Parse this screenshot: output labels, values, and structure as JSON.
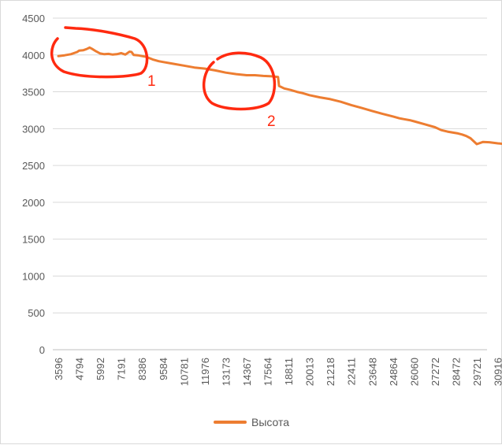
{
  "chart_data": {
    "type": "line",
    "title": "",
    "xlabel": "",
    "ylabel": "",
    "ylim": [
      0,
      4500
    ],
    "y_ticks": [
      0,
      500,
      1000,
      1500,
      2000,
      2500,
      3000,
      3500,
      4000,
      4500
    ],
    "y_tick_labels": [
      "0",
      "500",
      "1000",
      "1500",
      "2000",
      "2500",
      "3000",
      "3500",
      "4000",
      "4500"
    ],
    "x_tick_labels": [
      "3596",
      "4794",
      "5992",
      "7191",
      "8386",
      "9584",
      "10781",
      "11976",
      "13173",
      "14367",
      "17564",
      "18811",
      "20013",
      "21218",
      "22411",
      "23648",
      "24864",
      "26060",
      "27272",
      "28472",
      "29721",
      "30916"
    ],
    "grid": "horizontal",
    "legend_position": "bottom",
    "series": [
      {
        "name": "Высота",
        "color": "#ed7d31",
        "x_index": [
          0,
          0.3,
          0.6,
          0.9,
          1.0,
          1.2,
          1.35,
          1.5,
          1.6,
          1.8,
          2.0,
          2.2,
          2.4,
          2.6,
          2.8,
          3.0,
          3.2,
          3.4,
          3.5,
          3.6,
          3.8,
          4.0,
          4.2,
          4.5,
          4.8,
          5.0,
          5.5,
          6.0,
          6.5,
          7.0,
          7.5,
          8.0,
          8.5,
          9.0,
          9.4,
          9.8,
          10.2,
          10.5,
          10.55,
          10.8,
          11.1,
          11.4,
          11.7,
          12.0,
          12.5,
          13.0,
          13.5,
          14.0,
          14.5,
          15.0,
          15.5,
          16.0,
          16.3,
          16.5,
          16.8,
          17.0,
          17.5,
          18.0,
          18.3,
          18.6,
          18.9,
          19.1,
          19.3,
          19.5,
          19.7,
          20.0,
          20.3,
          20.6,
          21.0,
          21.4
        ],
        "values": [
          3985,
          3995,
          4010,
          4040,
          4060,
          4065,
          4080,
          4100,
          4085,
          4050,
          4020,
          4010,
          4015,
          4005,
          4010,
          4025,
          4005,
          4045,
          4040,
          4000,
          3995,
          3985,
          3975,
          3940,
          3915,
          3905,
          3880,
          3855,
          3830,
          3815,
          3790,
          3760,
          3740,
          3725,
          3725,
          3715,
          3710,
          3700,
          3580,
          3545,
          3525,
          3500,
          3480,
          3455,
          3425,
          3400,
          3365,
          3320,
          3280,
          3240,
          3200,
          3165,
          3140,
          3130,
          3115,
          3100,
          3060,
          3020,
          2980,
          2960,
          2945,
          2935,
          2920,
          2900,
          2870,
          2790,
          2820,
          2815,
          2800,
          2790
        ]
      }
    ],
    "annotations": [
      {
        "label": "1",
        "shape": "ellipse",
        "color": "#ff2a10"
      },
      {
        "label": "2",
        "shape": "ellipse",
        "color": "#ff2a10"
      }
    ]
  }
}
